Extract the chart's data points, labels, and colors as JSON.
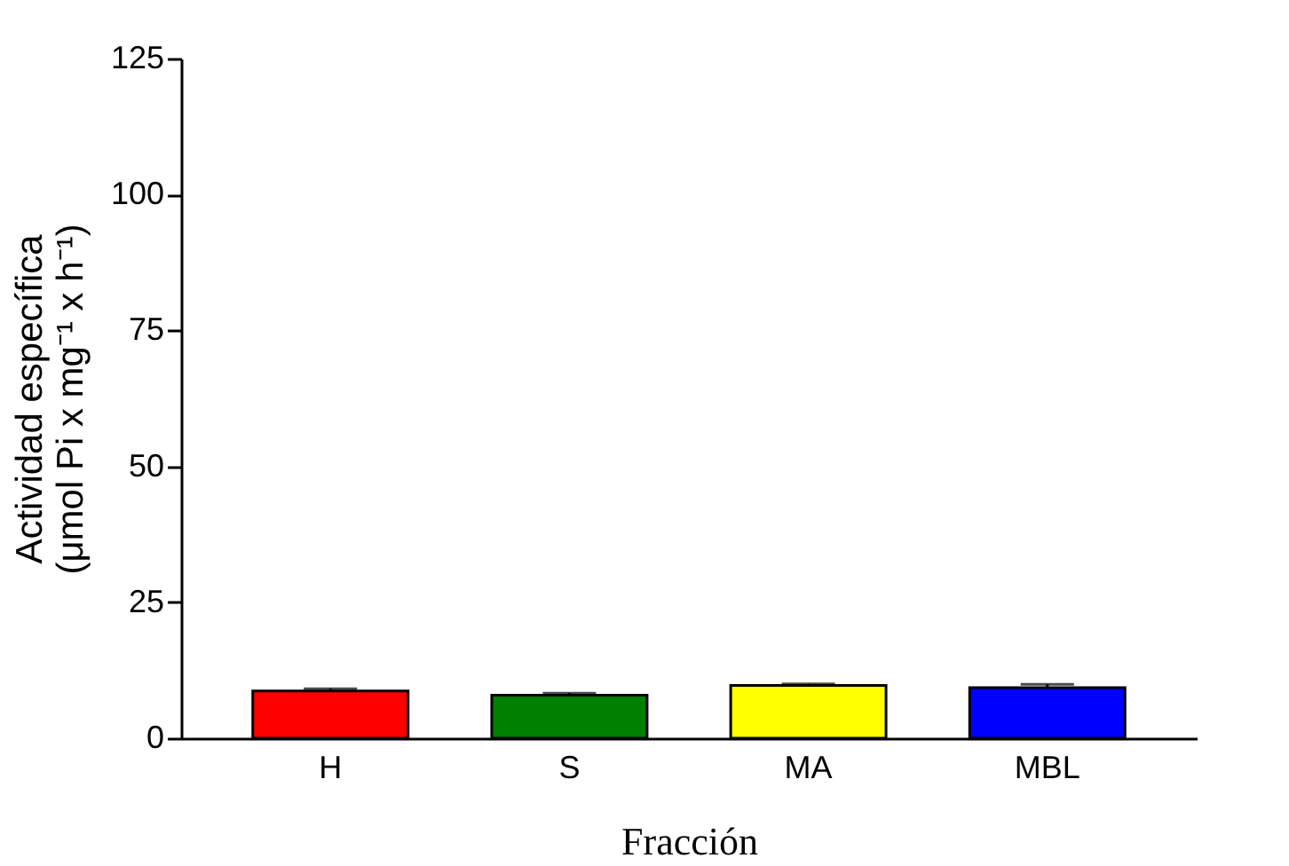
{
  "chart_data": {
    "type": "bar",
    "xlabel": "Fracción",
    "ylabel": [
      "Actividad específica",
      "(μmol Pi x mg⁻¹ x h⁻¹)"
    ],
    "categories": [
      "H",
      "S",
      "MA",
      "MBL"
    ],
    "values": [
      8.7,
      7.9,
      9.7,
      9.3
    ],
    "errors": [
      0.4,
      0.4,
      0.3,
      0.6
    ],
    "colors": [
      "#ff0000",
      "#008000",
      "#ffff00",
      "#0000ff"
    ],
    "ylim": [
      0,
      125
    ],
    "yticks": [
      0,
      25,
      50,
      75,
      100,
      125
    ],
    "grid": false
  }
}
